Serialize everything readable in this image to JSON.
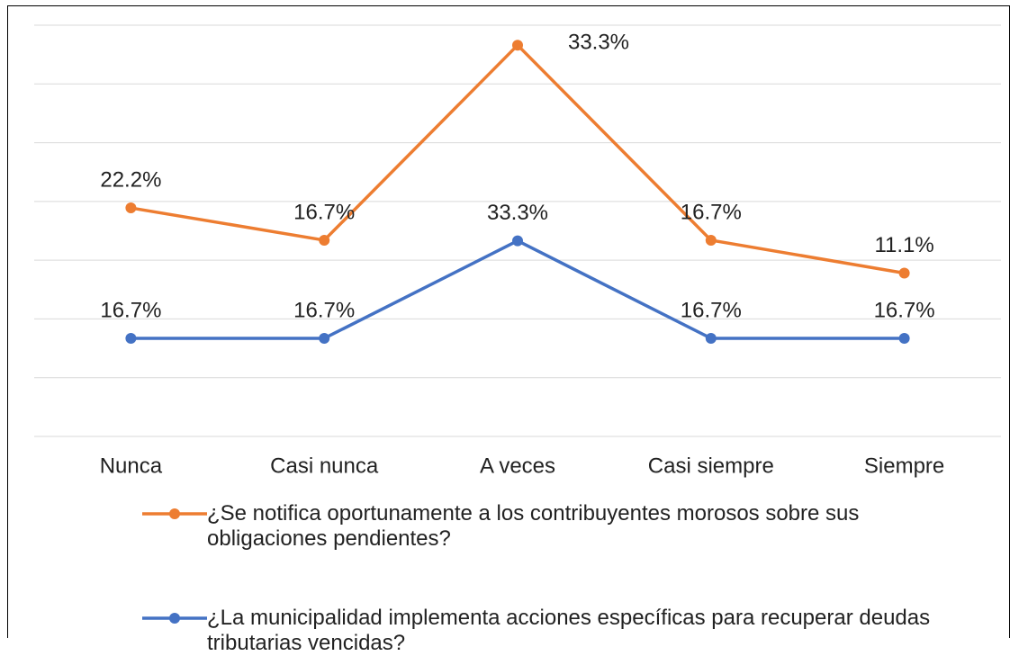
{
  "chart_data": {
    "type": "line",
    "stacked": true,
    "categories": [
      "Nunca",
      "Casi nunca",
      "A veces",
      "Casi siempre",
      "Siempre"
    ],
    "series": [
      {
        "name": "¿Se notifica oportunamente a los contribuyentes morosos sobre sus obligaciones pendientes?",
        "color": "#ed7d31",
        "values": [
          22.2,
          16.7,
          33.3,
          16.7,
          11.1
        ],
        "value_labels": [
          "22.2%",
          "16.7%",
          "33.3%",
          "16.7%",
          "11.1%"
        ]
      },
      {
        "name": "¿La municipalidad implementa acciones específicas para recuperar deudas tributarias vencidas?",
        "color": "#4472c4",
        "values": [
          16.7,
          16.7,
          33.3,
          16.7,
          16.7
        ],
        "value_labels": [
          "16.7%",
          "16.7%",
          "33.3%",
          "16.7%",
          "16.7%"
        ]
      }
    ],
    "ylim": [
      0,
      70
    ],
    "yticks": [
      0,
      10,
      20,
      30,
      40,
      50,
      60,
      70
    ],
    "grid": true,
    "legend": "bottom"
  }
}
